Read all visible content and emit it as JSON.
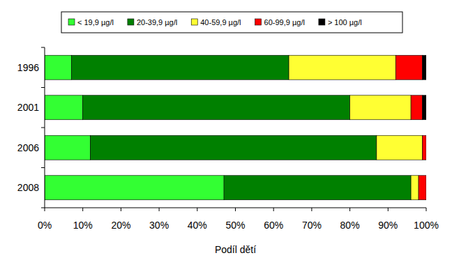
{
  "chart_data": {
    "type": "bar",
    "orientation": "horizontal",
    "stacked": true,
    "grid": false,
    "legend": "top",
    "x_label": "Podíl dětí",
    "categories": [
      "1996",
      "2001",
      "2006",
      "2008"
    ],
    "xlim": [
      0,
      100
    ],
    "xticks": [
      {
        "value": 0,
        "label": "0%"
      },
      {
        "value": 10,
        "label": "10%"
      },
      {
        "value": 20,
        "label": "20%"
      },
      {
        "value": 30,
        "label": "30%"
      },
      {
        "value": 40,
        "label": "40%"
      },
      {
        "value": 50,
        "label": "50%"
      },
      {
        "value": 60,
        "label": "60%"
      },
      {
        "value": 70,
        "label": "70%"
      },
      {
        "value": 80,
        "label": "80%"
      },
      {
        "value": 90,
        "label": "90%"
      },
      {
        "value": 100,
        "label": "100%"
      }
    ],
    "series": [
      {
        "name": "< 19,9 µg/l",
        "color": "#33ff33",
        "values": [
          7,
          10,
          12,
          47
        ]
      },
      {
        "name": "20-39,9 µg/l",
        "color": "#008000",
        "values": [
          57,
          70,
          75,
          49
        ]
      },
      {
        "name": "40-59,9 µg/l",
        "color": "#ffff33",
        "values": [
          28,
          16,
          12,
          2
        ]
      },
      {
        "name": "60-99,9 µg/l",
        "color": "#ff0000",
        "values": [
          7,
          3,
          1,
          2
        ]
      },
      {
        "name": "> 100 µg/l",
        "color": "#000000",
        "values": [
          1,
          1,
          0,
          0
        ]
      }
    ]
  }
}
